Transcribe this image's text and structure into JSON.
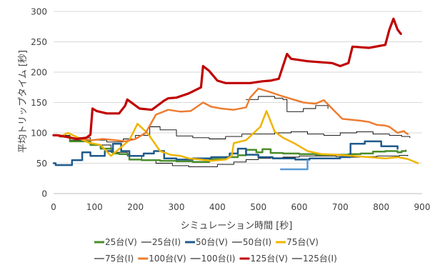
{
  "chart_data": {
    "type": "line",
    "title": "",
    "xlabel": "シミュレーション時間 [秒]",
    "ylabel": "平均トリップタイム [秒]",
    "xlim": [
      0,
      900
    ],
    "ylim": [
      0,
      300
    ],
    "xticks": [
      0,
      100,
      200,
      300,
      400,
      500,
      600,
      700,
      800,
      900
    ],
    "yticks": [
      0,
      50,
      100,
      150,
      200,
      250,
      300
    ],
    "grid": "horizontal",
    "legend_position": "bottom",
    "series": [
      {
        "name": "25台(V)",
        "color": "#4a8c2a",
        "width": 2.5,
        "step": true,
        "x": [
          0,
          15,
          40,
          90,
          115,
          145,
          160,
          185,
          215,
          260,
          300,
          340,
          380,
          420,
          450,
          470,
          495,
          510,
          530,
          560,
          600,
          640,
          680,
          720,
          750,
          780,
          810,
          840,
          850,
          860
        ],
        "y": [
          96,
          94,
          86,
          80,
          74,
          66,
          65,
          56,
          55,
          54,
          53,
          52,
          57,
          60,
          63,
          72,
          68,
          73,
          67,
          66,
          65,
          64,
          64,
          65,
          66,
          69,
          70,
          68,
          70,
          71
        ]
      },
      {
        "name": "25台(I)",
        "color": "#000000",
        "width": 0.9,
        "step": true,
        "x": [
          0,
          15,
          40,
          90,
          140,
          180,
          215,
          250,
          290,
          330,
          360,
          400,
          440,
          470,
          500,
          530,
          560,
          600,
          640,
          690,
          720,
          750,
          790,
          820,
          845,
          865
        ],
        "y": [
          96,
          94,
          88,
          80,
          68,
          62,
          55,
          50,
          46,
          44,
          44,
          48,
          52,
          56,
          58,
          59,
          60,
          62,
          62,
          61,
          60,
          61,
          62,
          62,
          63,
          62
        ]
      },
      {
        "name": "50台(V)",
        "color": "#1f5a8c",
        "width": 2.5,
        "step": true,
        "x": [
          0,
          5,
          10,
          45,
          70,
          90,
          105,
          125,
          145,
          165,
          185,
          220,
          245,
          270,
          300,
          340,
          385,
          430,
          450,
          470,
          500,
          535,
          590,
          625,
          660,
          700,
          725,
          760,
          800,
          840
        ],
        "y": [
          50,
          47,
          47,
          55,
          68,
          62,
          62,
          70,
          82,
          70,
          62,
          66,
          70,
          58,
          56,
          58,
          60,
          66,
          74,
          64,
          60,
          58,
          56,
          58,
          58,
          60,
          82,
          86,
          78,
          74
        ]
      },
      {
        "name": "50台(I)",
        "color": "#5b9bd5",
        "width": 2.5,
        "step": true,
        "x": [
          555,
          575,
          595,
          612,
          620
        ],
        "y": [
          40,
          40,
          40,
          40,
          55
        ]
      },
      {
        "name": "75台(V)",
        "color": "#f0b400",
        "width": 2.5,
        "step": false,
        "x": [
          0,
          20,
          35,
          60,
          85,
          115,
          140,
          185,
          205,
          230,
          260,
          285,
          310,
          330,
          360,
          385,
          420,
          435,
          440,
          470,
          505,
          520,
          540,
          560,
          590,
          620,
          655,
          690,
          730,
          770,
          810,
          840,
          865,
          890
        ],
        "y": [
          96,
          95,
          100,
          92,
          84,
          80,
          62,
          88,
          115,
          99,
          70,
          64,
          62,
          58,
          56,
          54,
          56,
          62,
          83,
          88,
          110,
          136,
          102,
          92,
          82,
          70,
          65,
          64,
          62,
          60,
          58,
          60,
          57,
          50
        ]
      },
      {
        "name": "75台(I)",
        "color": "#000000",
        "width": 0.9,
        "step": true,
        "x": [
          0,
          40,
          90,
          130,
          170,
          200,
          235,
          260,
          300,
          340,
          380,
          420,
          460,
          500,
          540,
          580,
          620,
          660,
          700,
          740,
          780,
          820,
          850,
          870
        ],
        "y": [
          96,
          92,
          88,
          85,
          90,
          96,
          110,
          105,
          95,
          92,
          90,
          94,
          98,
          98,
          100,
          102,
          98,
          96,
          100,
          102,
          98,
          96,
          94,
          92
        ]
      },
      {
        "name": "100台(V)",
        "color": "#ed7d31",
        "width": 2.5,
        "step": false,
        "x": [
          0,
          15,
          40,
          70,
          95,
          120,
          150,
          175,
          200,
          225,
          250,
          280,
          310,
          335,
          365,
          385,
          410,
          440,
          470,
          480,
          500,
          525,
          560,
          575,
          610,
          640,
          660,
          680,
          705,
          750,
          770,
          790,
          810,
          820,
          840,
          855,
          860,
          865
        ],
        "y": [
          96,
          95,
          92,
          90,
          88,
          90,
          88,
          86,
          90,
          100,
          130,
          138,
          135,
          136,
          150,
          143,
          140,
          138,
          142,
          158,
          173,
          168,
          160,
          157,
          150,
          148,
          154,
          140,
          123,
          120,
          118,
          113,
          112,
          110,
          100,
          103,
          100,
          98
        ]
      },
      {
        "name": "100台(I)",
        "color": "#000000",
        "width": 0.9,
        "step": true,
        "x": [
          470,
          500,
          540,
          560,
          570,
          610,
          640,
          670
        ],
        "y": [
          155,
          160,
          157,
          155,
          135,
          140,
          145,
          140
        ]
      },
      {
        "name": "125台(V)",
        "color": "#c00000",
        "width": 3.2,
        "step": false,
        "x": [
          0,
          10,
          35,
          55,
          80,
          90,
          95,
          105,
          130,
          160,
          175,
          180,
          210,
          240,
          270,
          280,
          300,
          330,
          360,
          365,
          380,
          400,
          420,
          450,
          480,
          510,
          530,
          550,
          570,
          580,
          620,
          680,
          700,
          720,
          730,
          770,
          810,
          820,
          830,
          840,
          848
        ],
        "y": [
          96,
          96,
          93,
          90,
          92,
          97,
          140,
          136,
          132,
          132,
          145,
          155,
          140,
          138,
          153,
          157,
          158,
          165,
          175,
          210,
          202,
          186,
          182,
          182,
          182,
          185,
          186,
          189,
          230,
          222,
          218,
          215,
          210,
          215,
          242,
          240,
          245,
          270,
          288,
          270,
          263
        ]
      },
      {
        "name": "125台(I)",
        "color": "#000000",
        "width": 0.9,
        "step": true,
        "x": [],
        "y": []
      }
    ]
  },
  "legend": {
    "rows": [
      [
        {
          "label": "25台(V)",
          "color": "#4a8c2a",
          "thick": true
        },
        {
          "label": "25台(I)",
          "color": "#000000",
          "thick": false
        },
        {
          "label": "50台(V)",
          "color": "#1f5a8c",
          "thick": true
        },
        {
          "label": "50台(I)",
          "color": "#000000",
          "thick": false
        },
        {
          "label": "75台(V)",
          "color": "#f0b400",
          "thick": true
        }
      ],
      [
        {
          "label": "75台(I)",
          "color": "#000000",
          "thick": false
        },
        {
          "label": "100台(V)",
          "color": "#ed7d31",
          "thick": true
        },
        {
          "label": "100台(I)",
          "color": "#000000",
          "thick": false
        },
        {
          "label": "125台(V)",
          "color": "#c00000",
          "thick": true
        },
        {
          "label": "125台(I)",
          "color": "#000000",
          "thick": false
        }
      ]
    ]
  }
}
